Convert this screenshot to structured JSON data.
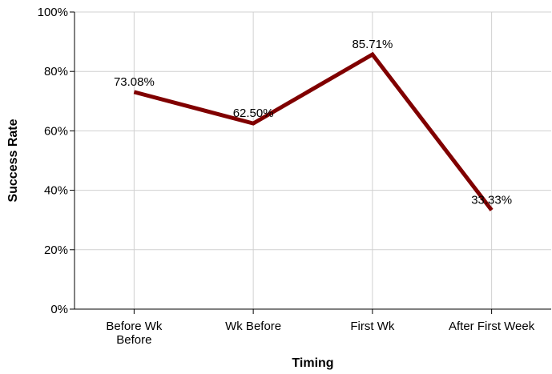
{
  "chart_data": {
    "type": "line",
    "title": "",
    "xlabel": "Timing",
    "ylabel": "Success Rate",
    "categories": [
      [
        "Before Wk",
        "Before"
      ],
      [
        "Wk Before"
      ],
      [
        "First Wk"
      ],
      [
        "After First Week"
      ]
    ],
    "series": [
      {
        "values": [
          73.08,
          62.5,
          85.71,
          33.33
        ],
        "labels": [
          "73.08%",
          "62.50%",
          "85.71%",
          "33.33%"
        ],
        "color": "#800000"
      }
    ],
    "ylim": [
      0,
      100
    ],
    "yticks": [
      0,
      20,
      40,
      60,
      80,
      100
    ],
    "ytick_labels": [
      "0%",
      "20%",
      "40%",
      "60%",
      "80%",
      "100%"
    ],
    "grid": true,
    "legend": "none"
  }
}
